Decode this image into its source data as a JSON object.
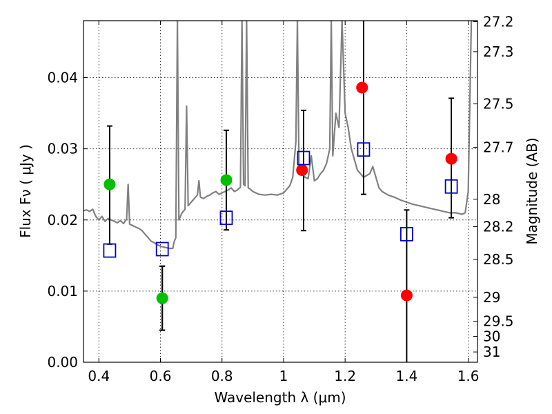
{
  "chart_data": {
    "type": "scatter",
    "xlabel": "Wavelength  λ (μm)",
    "ylabel": "Flux  Fν  ( μJy )",
    "y2label": "Magnitude (AB)",
    "xlim": [
      0.35,
      1.63
    ],
    "ylim": [
      0.0,
      0.048
    ],
    "grid": true,
    "x_ticks": [
      {
        "value": 0.4,
        "label": "0.4"
      },
      {
        "value": 0.6,
        "label": "0.6"
      },
      {
        "value": 0.8,
        "label": "0.8"
      },
      {
        "value": 1.0,
        "label": "1"
      },
      {
        "value": 1.2,
        "label": "1.2"
      },
      {
        "value": 1.4,
        "label": "1.4"
      },
      {
        "value": 1.6,
        "label": "1.6"
      }
    ],
    "y_ticks": [
      {
        "value": 0.0,
        "label": "0.00"
      },
      {
        "value": 0.01,
        "label": "0.01"
      },
      {
        "value": 0.02,
        "label": "0.02"
      },
      {
        "value": 0.03,
        "label": "0.03"
      },
      {
        "value": 0.04,
        "label": "0.04"
      }
    ],
    "mag_ticks": [
      {
        "value": 27.2,
        "label": "27.2"
      },
      {
        "value": 27.3,
        "label": "27.3"
      },
      {
        "value": 27.5,
        "label": "27.5"
      },
      {
        "value": 27.7,
        "label": "27.7"
      },
      {
        "value": 28.0,
        "label": "28"
      },
      {
        "value": 28.2,
        "label": "28.2"
      },
      {
        "value": 28.5,
        "label": "28.5"
      },
      {
        "value": 29.0,
        "label": "29"
      },
      {
        "value": 29.5,
        "label": "29.5"
      },
      {
        "value": 30.0,
        "label": "30"
      },
      {
        "value": 31.0,
        "label": "31"
      }
    ],
    "model_spectrum": {
      "color": "#808080",
      "x": [
        0.35,
        0.36,
        0.37,
        0.38,
        0.39,
        0.4,
        0.41,
        0.42,
        0.43,
        0.44,
        0.45,
        0.46,
        0.47,
        0.48,
        0.49,
        0.495,
        0.5,
        0.51,
        0.52,
        0.53,
        0.54,
        0.55,
        0.56,
        0.57,
        0.58,
        0.59,
        0.6,
        0.61,
        0.62,
        0.63,
        0.64,
        0.645,
        0.65,
        0.655,
        0.66,
        0.665,
        0.67,
        0.68,
        0.685,
        0.69,
        0.7,
        0.71,
        0.72,
        0.725,
        0.73,
        0.74,
        0.75,
        0.76,
        0.77,
        0.78,
        0.79,
        0.8,
        0.81,
        0.82,
        0.83,
        0.84,
        0.85,
        0.86,
        0.865,
        0.87,
        0.875,
        0.88,
        0.885,
        0.89,
        0.9,
        0.92,
        0.94,
        0.96,
        0.98,
        1.0,
        1.02,
        1.03,
        1.04,
        1.045,
        1.05,
        1.06,
        1.07,
        1.08,
        1.09,
        1.1,
        1.11,
        1.12,
        1.13,
        1.14,
        1.15,
        1.155,
        1.16,
        1.17,
        1.18,
        1.19,
        1.2,
        1.21,
        1.22,
        1.24,
        1.26,
        1.28,
        1.29,
        1.3,
        1.31,
        1.32,
        1.34,
        1.36,
        1.38,
        1.4,
        1.42,
        1.44,
        1.46,
        1.48,
        1.5,
        1.52,
        1.54,
        1.56,
        1.58,
        1.59,
        1.6,
        1.61,
        1.62,
        1.63
      ],
      "y": [
        0.0213,
        0.0214,
        0.0212,
        0.0215,
        0.0205,
        0.02,
        0.0205,
        0.0198,
        0.0202,
        0.02,
        0.0198,
        0.0196,
        0.0199,
        0.0195,
        0.0201,
        0.025,
        0.0194,
        0.0192,
        0.019,
        0.0188,
        0.0185,
        0.018,
        0.0175,
        0.017,
        0.0168,
        0.0165,
        0.0163,
        0.0162,
        0.0161,
        0.016,
        0.016,
        0.017,
        0.0175,
        0.048,
        0.02,
        0.0205,
        0.021,
        0.0215,
        0.036,
        0.022,
        0.0225,
        0.023,
        0.0235,
        0.0255,
        0.0232,
        0.023,
        0.0233,
        0.0235,
        0.0238,
        0.024,
        0.0236,
        0.0238,
        0.024,
        0.0242,
        0.0245,
        0.024,
        0.0242,
        0.0246,
        0.048,
        0.025,
        0.0248,
        0.048,
        0.0245,
        0.0244,
        0.024,
        0.0236,
        0.0235,
        0.0236,
        0.0235,
        0.0238,
        0.0248,
        0.026,
        0.031,
        0.048,
        0.0275,
        0.0265,
        0.026,
        0.0258,
        0.029,
        0.0255,
        0.0258,
        0.0265,
        0.027,
        0.028,
        0.03,
        0.048,
        0.029,
        0.035,
        0.033,
        0.048,
        0.035,
        0.033,
        0.03,
        0.027,
        0.026,
        0.0265,
        0.0275,
        0.026,
        0.0245,
        0.024,
        0.0235,
        0.0232,
        0.0228,
        0.0225,
        0.0222,
        0.022,
        0.0218,
        0.0216,
        0.0214,
        0.0212,
        0.021,
        0.021,
        0.0208,
        0.021,
        0.024,
        0.048,
        0.048,
        0.048
      ]
    },
    "series": [
      {
        "marker": "circle",
        "color": "#00c000",
        "points": [
          {
            "x": 0.435,
            "y": 0.025,
            "err_low": 0.0166,
            "err_high": 0.0332
          },
          {
            "x": 0.606,
            "y": 0.009,
            "err_low": 0.0045,
            "err_high": 0.0135
          },
          {
            "x": 0.814,
            "y": 0.0256
          }
        ]
      },
      {
        "marker": "circle",
        "color": "#ff0000",
        "points": [
          {
            "x": 1.06,
            "y": 0.027
          },
          {
            "x": 1.255,
            "y": 0.0386
          },
          {
            "x": 1.4,
            "y": 0.0094
          },
          {
            "x": 1.545,
            "y": 0.0286
          }
        ]
      },
      {
        "marker": "square-open",
        "color": "#0000cc",
        "points": [
          {
            "x": 0.435,
            "y": 0.0157
          },
          {
            "x": 0.606,
            "y": 0.0159,
            "err_low": 0.0045,
            "err_high": 0.0135
          },
          {
            "x": 0.814,
            "y": 0.0203,
            "err_low": 0.0186,
            "err_high": 0.0326
          },
          {
            "x": 1.065,
            "y": 0.0287,
            "err_low": 0.0185,
            "err_high": 0.0354
          },
          {
            "x": 1.26,
            "y": 0.0299,
            "err_low": 0.0236,
            "err_high": 0.048
          },
          {
            "x": 1.4,
            "y": 0.018,
            "err_low": 0.0,
            "err_high": 0.0214
          },
          {
            "x": 1.545,
            "y": 0.0247,
            "err_low": 0.0203,
            "err_high": 0.0371
          }
        ]
      }
    ]
  }
}
